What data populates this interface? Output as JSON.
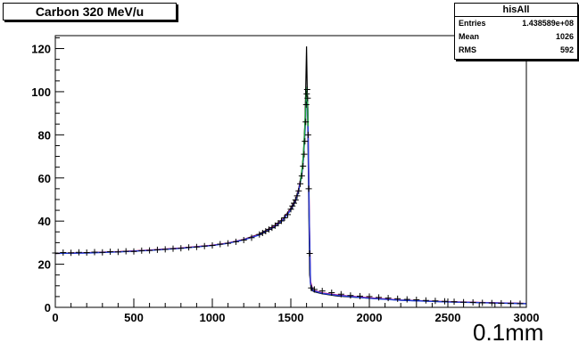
{
  "chart_data": {
    "type": "line",
    "title": "Carbon 320 MeV/u",
    "xlabel": "0.1mm",
    "ylabel": "",
    "xlim": [
      0,
      3000
    ],
    "ylim": [
      0,
      126
    ],
    "x_ticks": [
      0,
      500,
      1000,
      1500,
      2000,
      2500,
      3000
    ],
    "y_ticks": [
      0,
      20,
      40,
      60,
      80,
      100,
      120
    ],
    "grid": false,
    "stats": {
      "name": "hisAll",
      "rows": [
        {
          "label": "Entries",
          "value": "1.438589e+08"
        },
        {
          "label": "Mean",
          "value": "1026"
        },
        {
          "label": "RMS",
          "value": "592"
        }
      ]
    },
    "histogram": {
      "x": [
        0,
        200,
        400,
        600,
        800,
        1000,
        1100,
        1200,
        1300,
        1400,
        1450,
        1500,
        1530,
        1550,
        1570,
        1580,
        1590,
        1595,
        1600,
        1605,
        1610,
        1615,
        1620,
        1630,
        1650,
        1700,
        1800,
        2000,
        2200,
        2500,
        3000
      ],
      "y": [
        25,
        25.3,
        25.8,
        26.5,
        27.5,
        28.8,
        29.8,
        31.5,
        34,
        38,
        41,
        46,
        50,
        55,
        63,
        71,
        86,
        102,
        121,
        98,
        72,
        42,
        15,
        8,
        7.2,
        6.3,
        5.2,
        4.2,
        3.3,
        2.5,
        1.8
      ]
    },
    "series": [
      {
        "color": "#e0007a",
        "x": [
          0,
          200,
          400,
          600,
          800,
          1000,
          1100,
          1200,
          1300,
          1400,
          1450,
          1500,
          1530,
          1550,
          1570,
          1580,
          1590,
          1598,
          1602,
          1608,
          1612,
          1618,
          1625,
          1640,
          1700,
          1800,
          2000,
          2200,
          2500,
          3000
        ],
        "y": [
          25,
          25.3,
          25.8,
          26.5,
          27.5,
          28.8,
          29.8,
          31.4,
          33.8,
          37.8,
          40.8,
          45.6,
          49.6,
          54.5,
          62,
          69,
          82,
          96,
          100,
          93,
          72,
          40,
          12,
          8,
          6.7,
          5.7,
          4.4,
          3.4,
          2.6,
          1.8
        ]
      },
      {
        "color": "#1f3fd6",
        "x": [
          0,
          200,
          400,
          600,
          800,
          1000,
          1100,
          1200,
          1300,
          1400,
          1450,
          1500,
          1530,
          1550,
          1570,
          1580,
          1590,
          1598,
          1602,
          1608,
          1612,
          1618,
          1625,
          1640,
          1700,
          1800,
          2000,
          2200,
          2500,
          3000
        ],
        "y": [
          25,
          25.2,
          25.7,
          26.4,
          27.4,
          28.7,
          29.7,
          31.3,
          33.6,
          37.5,
          40.5,
          45.2,
          49.2,
          54,
          61.5,
          68.5,
          81,
          95,
          99,
          92,
          70,
          38,
          11,
          7.8,
          6.5,
          5.5,
          4.2,
          3.3,
          2.5,
          1.7
        ]
      },
      {
        "color": "#1aa33a",
        "x": [
          1560,
          1575,
          1585,
          1592,
          1598,
          1602,
          1606,
          1610
        ],
        "y": [
          58,
          66,
          76,
          88,
          98,
          102,
          96,
          84
        ]
      }
    ],
    "markers": {
      "symbol": "+",
      "color": "#000000",
      "x": [
        0,
        50,
        100,
        150,
        200,
        250,
        300,
        350,
        400,
        450,
        500,
        550,
        600,
        650,
        700,
        750,
        800,
        850,
        900,
        950,
        1000,
        1050,
        1100,
        1150,
        1200,
        1250,
        1300,
        1320,
        1340,
        1360,
        1380,
        1400,
        1420,
        1440,
        1460,
        1480,
        1500,
        1510,
        1520,
        1530,
        1540,
        1550,
        1560,
        1570,
        1578,
        1585,
        1590,
        1595,
        1598,
        1601,
        1604,
        1607,
        1610,
        1614,
        1620,
        1630,
        1650,
        1700,
        1760,
        1820,
        1880,
        1940,
        2000,
        2060,
        2120,
        2180,
        2240,
        2300,
        2360,
        2420,
        2480,
        2540,
        2600,
        2660,
        2720,
        2780,
        2840,
        2900,
        2960
      ],
      "y": [
        25.2,
        25.4,
        25.3,
        25.5,
        25.4,
        25.6,
        25.5,
        25.8,
        25.7,
        26,
        25.9,
        26.3,
        26.4,
        26.7,
        26.9,
        27.2,
        27.4,
        27.8,
        28,
        28.4,
        28.7,
        29.3,
        29.7,
        30.4,
        31.2,
        32.3,
        33.8,
        34.5,
        35.3,
        36.1,
        36.9,
        37.9,
        39,
        40.1,
        41.5,
        43,
        45.5,
        47,
        48.3,
        49.8,
        51.7,
        54,
        57.3,
        61,
        65.5,
        71,
        77,
        86,
        94,
        99,
        101,
        97,
        80,
        55,
        25,
        9,
        8.3,
        7.6,
        6.8,
        6.1,
        5.5,
        5.2,
        5,
        4.6,
        4.3,
        4,
        3.7,
        3.5,
        3.2,
        3,
        2.8,
        2.6,
        2.4,
        2.3,
        2.1,
        2,
        1.9,
        1.8,
        1.7
      ]
    }
  }
}
